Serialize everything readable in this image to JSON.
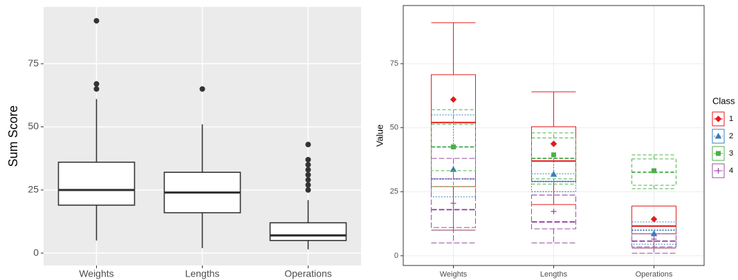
{
  "chart_data": [
    {
      "type": "boxplot",
      "ylabel": "Sum Score",
      "theme": "grey",
      "categories": [
        "Weights",
        "Lengths",
        "Operations"
      ],
      "ylim": [
        -4.9,
        97.5
      ],
      "yticks": [
        0,
        25,
        50,
        75
      ],
      "grid": true,
      "color": "#333333",
      "boxes": [
        {
          "low": 5,
          "q1": 19,
          "median": 25,
          "q3": 36,
          "high": 61,
          "outliers": [
            65,
            67,
            92
          ]
        },
        {
          "low": 2,
          "q1": 16,
          "median": 24,
          "q3": 32,
          "high": 51,
          "outliers": [
            65
          ]
        },
        {
          "low": 1.5,
          "q1": 5,
          "median": 7,
          "q3": 12,
          "high": 21,
          "outliers": [
            25,
            27,
            29,
            31,
            33,
            35,
            37,
            43
          ]
        }
      ]
    },
    {
      "type": "grouped-boxplot",
      "ylabel": "Value",
      "theme": "bw",
      "legend_title": "Class",
      "legend": "right",
      "categories": [
        "Weights",
        "Lengths",
        "Operations"
      ],
      "ylim": [
        -3.8,
        97.7
      ],
      "yticks": [
        0,
        25,
        50,
        75
      ],
      "grid": true,
      "series": [
        {
          "name": "1",
          "color": "#e41a1c",
          "dash": "none",
          "marker": "diamond",
          "values": [
            {
              "low": 10,
              "q1": 27,
              "median": 52,
              "q3": 70.7,
              "high": 91,
              "mean": 61
            },
            {
              "low": 20,
              "q1": 29,
              "median": 37,
              "q3": 50.4,
              "high": 64,
              "mean": 43.7
            },
            {
              "low": 3,
              "q1": 8.6,
              "median": 11.6,
              "q3": 19.4,
              "high": 19.4,
              "mean": 14.3
            }
          ]
        },
        {
          "name": "2",
          "color": "#377eb8",
          "dash": "2,2",
          "marker": "triangle",
          "values": [
            {
              "low": 10,
              "q1": 23,
              "median": 30,
              "q3": 42.5,
              "high": 55,
              "mean": 33.7
            },
            {
              "low": 25,
              "q1": 25,
              "median": 29,
              "q3": 32,
              "high": 38,
              "mean": 31.8
            },
            {
              "low": 3,
              "q1": 4.5,
              "median": 10,
              "q3": 13.2,
              "high": 13.2,
              "mean": 8.6
            }
          ]
        },
        {
          "name": "3",
          "color": "#4daf4a",
          "dash": "5,3",
          "marker": "square",
          "values": [
            {
              "low": 27,
              "q1": 33.2,
              "median": 42.5,
              "q3": 51.3,
              "high": 57,
              "mean": 42.5
            },
            {
              "low": 28,
              "q1": 30,
              "median": 38,
              "q3": 46,
              "high": 48,
              "mean": 39.4
            },
            {
              "low": 26.2,
              "q1": 27.5,
              "median": 32.6,
              "q3": 37.8,
              "high": 39.4,
              "mean": 33.2
            }
          ]
        },
        {
          "name": "4",
          "color": "#984ea3",
          "dash": "8,3",
          "marker": "plus",
          "values": [
            {
              "low": 5,
              "q1": 11,
              "median": 18,
              "q3": 30,
              "high": 38,
              "mean": 20.5
            },
            {
              "low": 5,
              "q1": 10.5,
              "median": 13.2,
              "q3": 23.7,
              "high": 23.7,
              "mean": 17.3
            },
            {
              "low": 1,
              "q1": 3.5,
              "median": 5.7,
              "q3": 8.6,
              "high": 8.6,
              "mean": 6.5
            }
          ]
        }
      ]
    }
  ]
}
